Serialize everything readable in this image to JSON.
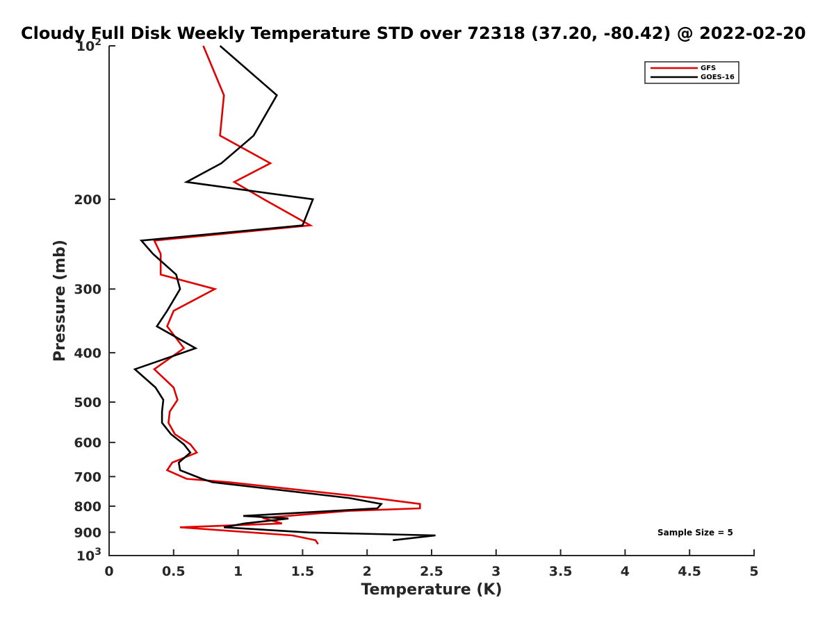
{
  "chart_data": {
    "type": "line",
    "title": "Cloudy Full Disk Weekly Temperature STD over 72318 (37.20, -80.42) @ 2022-02-20",
    "xlabel": "Temperature (K)",
    "ylabel": "Pressure (mb)",
    "xlim": [
      0,
      5
    ],
    "ylim": [
      100,
      1000
    ],
    "yscale": "log",
    "y_reversed": true,
    "grid": false,
    "legend_position": "top-right",
    "x_ticks": [
      0,
      0.5,
      1,
      1.5,
      2,
      2.5,
      3,
      3.5,
      4,
      4.5,
      5
    ],
    "x_tick_labels": [
      "0",
      "0.5",
      "1",
      "1.5",
      "2",
      "2.5",
      "3",
      "3.5",
      "4",
      "4.5",
      "5"
    ],
    "y_ticks": [
      {
        "value": 100,
        "label": "10",
        "sup": "2"
      },
      {
        "value": 200,
        "label": "200",
        "sup": ""
      },
      {
        "value": 300,
        "label": "300",
        "sup": ""
      },
      {
        "value": 400,
        "label": "400",
        "sup": ""
      },
      {
        "value": 500,
        "label": "500",
        "sup": ""
      },
      {
        "value": 600,
        "label": "600",
        "sup": ""
      },
      {
        "value": 700,
        "label": "700",
        "sup": ""
      },
      {
        "value": 800,
        "label": "800",
        "sup": ""
      },
      {
        "value": 900,
        "label": "900",
        "sup": ""
      },
      {
        "value": 1000,
        "label": "10",
        "sup": "3"
      }
    ],
    "series": [
      {
        "name": "GFS",
        "color": "#e00000",
        "points": [
          [
            0.73,
            100
          ],
          [
            0.89,
            125
          ],
          [
            0.86,
            150
          ],
          [
            1.25,
            170
          ],
          [
            0.97,
            185
          ],
          [
            1.2,
            200
          ],
          [
            1.56,
            225
          ],
          [
            0.35,
            241
          ],
          [
            0.4,
            256
          ],
          [
            0.4,
            281
          ],
          [
            0.82,
            300
          ],
          [
            0.5,
            331
          ],
          [
            0.45,
            355
          ],
          [
            0.58,
            392
          ],
          [
            0.35,
            431
          ],
          [
            0.5,
            468
          ],
          [
            0.53,
            495
          ],
          [
            0.47,
            522
          ],
          [
            0.46,
            549
          ],
          [
            0.51,
            578
          ],
          [
            0.63,
            605
          ],
          [
            0.68,
            628
          ],
          [
            0.49,
            657
          ],
          [
            0.45,
            680
          ],
          [
            0.6,
            707
          ],
          [
            0.93,
            718
          ],
          [
            2.05,
            771
          ],
          [
            2.41,
            792
          ],
          [
            2.41,
            808
          ],
          [
            1.86,
            817
          ],
          [
            1.19,
            844
          ],
          [
            1.34,
            865
          ],
          [
            0.55,
            880
          ],
          [
            1.42,
            913
          ],
          [
            1.6,
            933
          ],
          [
            1.62,
            950
          ]
        ]
      },
      {
        "name": "GOES-16",
        "color": "#000000",
        "points": [
          [
            0.86,
            100
          ],
          [
            1.3,
            125
          ],
          [
            1.12,
            150
          ],
          [
            0.87,
            170
          ],
          [
            0.6,
            185
          ],
          [
            1.58,
            200
          ],
          [
            1.5,
            225
          ],
          [
            0.25,
            241
          ],
          [
            0.34,
            256
          ],
          [
            0.52,
            281
          ],
          [
            0.55,
            300
          ],
          [
            0.45,
            331
          ],
          [
            0.37,
            355
          ],
          [
            0.67,
            392
          ],
          [
            0.2,
            431
          ],
          [
            0.36,
            468
          ],
          [
            0.42,
            495
          ],
          [
            0.41,
            522
          ],
          [
            0.41,
            549
          ],
          [
            0.48,
            578
          ],
          [
            0.58,
            605
          ],
          [
            0.63,
            628
          ],
          [
            0.54,
            657
          ],
          [
            0.55,
            680
          ],
          [
            0.72,
            707
          ],
          [
            0.8,
            718
          ],
          [
            1.86,
            771
          ],
          [
            2.11,
            792
          ],
          [
            2.08,
            808
          ],
          [
            1.75,
            817
          ],
          [
            1.04,
            836
          ],
          [
            1.39,
            846
          ],
          [
            1.05,
            865
          ],
          [
            0.89,
            880
          ],
          [
            1.55,
            901
          ],
          [
            2.53,
            913
          ],
          [
            2.2,
            933
          ]
        ]
      }
    ],
    "legend": [
      "GFS",
      "GOES-16"
    ],
    "annotations": [
      {
        "text": "Sample Size = 5",
        "position": "bottom-right"
      }
    ]
  }
}
